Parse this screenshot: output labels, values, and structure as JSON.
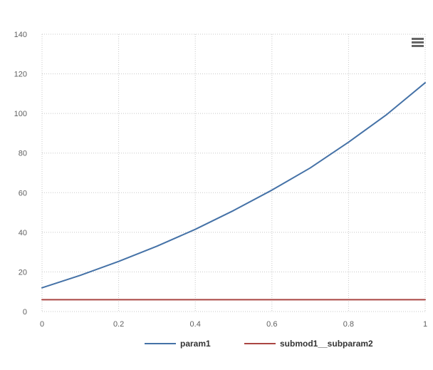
{
  "chart_data": {
    "type": "line",
    "x": [
      0,
      0.1,
      0.2,
      0.3,
      0.4,
      0.5,
      0.6,
      0.7,
      0.8,
      0.9,
      1
    ],
    "series": [
      {
        "name": "param1",
        "color": "#4572a7",
        "values": [
          12,
          18.3,
          25.3,
          33,
          41.5,
          51,
          61.3,
          72.5,
          85.5,
          99.5,
          115.5
        ]
      },
      {
        "name": "submod1__subparam2",
        "color": "#aa4643",
        "values": [
          6,
          6,
          6,
          6,
          6,
          6,
          6,
          6,
          6,
          6,
          6
        ]
      }
    ],
    "xticks": [
      "0",
      "0.2",
      "0.4",
      "0.6",
      "0.8",
      "1"
    ],
    "yticks": [
      "0",
      "20",
      "40",
      "60",
      "80",
      "100",
      "120",
      "140"
    ],
    "xlim": [
      0,
      1
    ],
    "ylim": [
      0,
      140
    ],
    "grid": true,
    "legend_position": "bottom-center",
    "menu_icon": "hamburger-menu-icon"
  }
}
